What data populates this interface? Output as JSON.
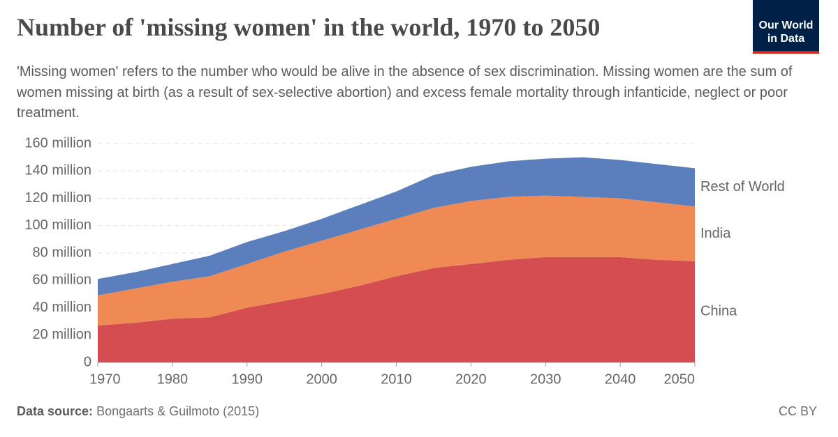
{
  "chart_data": {
    "type": "stacked-area",
    "title": "Number of 'missing women' in the world, 1970 to 2050",
    "subtitle": "'Missing women' refers to the number who would be alive in the absence of sex discrimination. Missing women are the sum of women missing at birth (as a result of sex-selective abortion) and excess female mortality through infanticide, neglect or poor treatment.",
    "x": [
      1970,
      1975,
      1980,
      1985,
      1990,
      1995,
      2000,
      2005,
      2010,
      2015,
      2020,
      2025,
      2030,
      2035,
      2040,
      2045,
      2050
    ],
    "series": [
      {
        "name": "China",
        "color": "#d44d50",
        "label_color": "#c3323a",
        "values": [
          27,
          29,
          32,
          33,
          40,
          45,
          50,
          56,
          63,
          69,
          72,
          75,
          77,
          77,
          77,
          75,
          74
        ]
      },
      {
        "name": "India",
        "color": "#ef8a55",
        "label_color": "#e0692a",
        "values": [
          22,
          25,
          27,
          30,
          32,
          36,
          39,
          41,
          42,
          44,
          46,
          46,
          45,
          44,
          43,
          42,
          40
        ]
      },
      {
        "name": "Rest of World",
        "color": "#5b7fbc",
        "label_color": "#3d66ad",
        "values": [
          12,
          12,
          13,
          15,
          16,
          15,
          16,
          18,
          20,
          24,
          25,
          26,
          27,
          29,
          28,
          28,
          28
        ]
      }
    ],
    "xlim": [
      1970,
      2050
    ],
    "xticks": [
      1970,
      1980,
      1990,
      2000,
      2010,
      2020,
      2030,
      2040,
      2050
    ],
    "ylim": [
      0,
      160
    ],
    "yticks": [
      0,
      {
        "value": 20,
        "label": "20 million"
      },
      {
        "value": 40,
        "label": "40 million"
      },
      {
        "value": 60,
        "label": "60 million"
      },
      {
        "value": 80,
        "label": "80 million"
      },
      {
        "value": 100,
        "label": "100 million"
      },
      {
        "value": 120,
        "label": "120 million"
      },
      {
        "value": 140,
        "label": "140 million"
      },
      {
        "value": 160,
        "label": "160 million"
      }
    ],
    "grid": true,
    "source_label": "Data source:",
    "source": "Bongaarts & Guilmoto (2015)",
    "license": "CC BY"
  },
  "logo": {
    "lines": [
      "Our World",
      "in Data"
    ]
  }
}
